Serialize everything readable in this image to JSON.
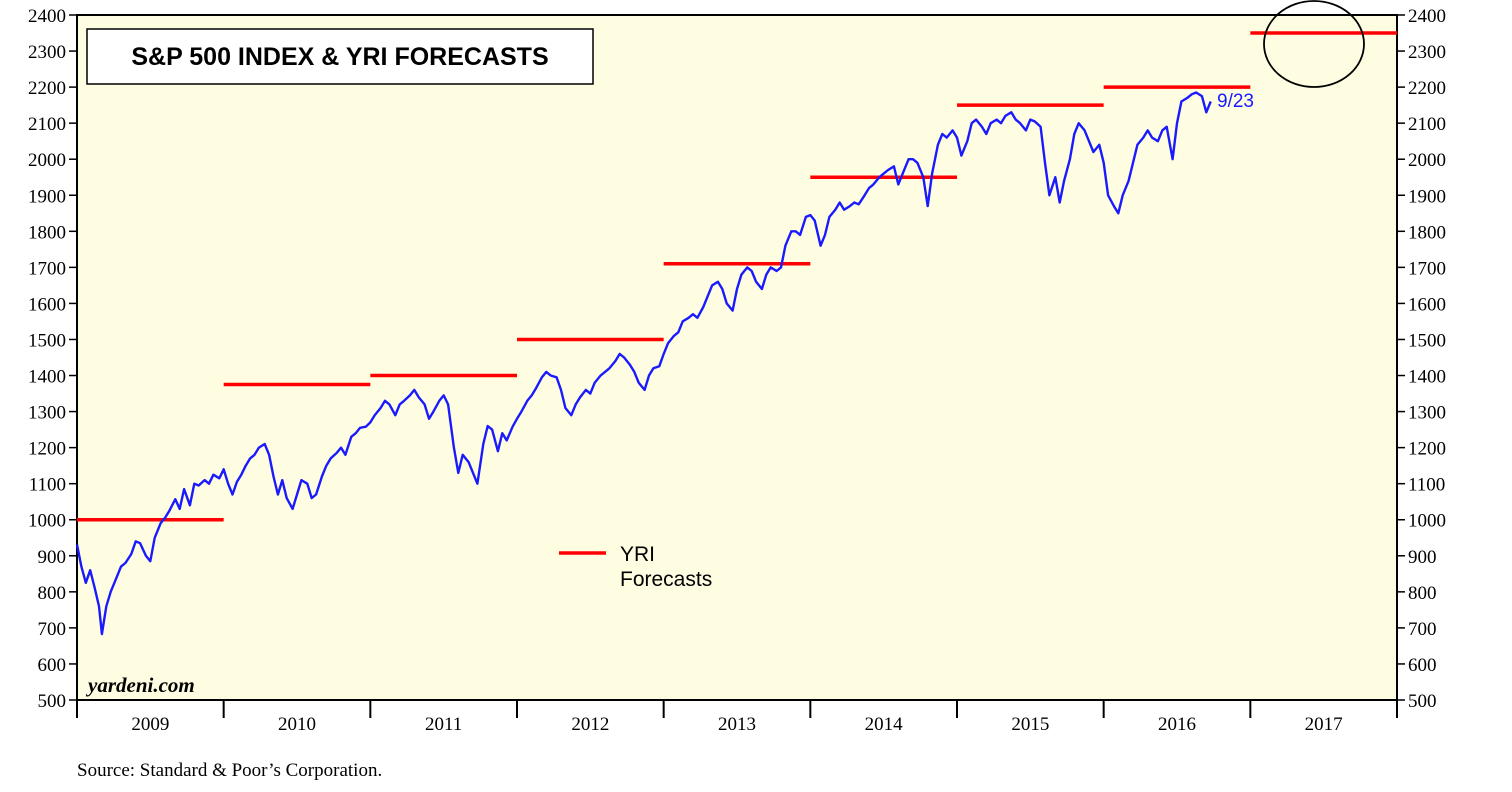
{
  "chart_data": {
    "type": "line",
    "title": "S&P 500 INDEX & YRI FORECASTS",
    "ylim": [
      500,
      2400
    ],
    "yticks": [
      500,
      600,
      700,
      800,
      900,
      1000,
      1100,
      1200,
      1300,
      1400,
      1500,
      1600,
      1700,
      1800,
      1900,
      2000,
      2100,
      2200,
      2300,
      2400
    ],
    "xlim": [
      2009.0,
      2018.0
    ],
    "year_labels": [
      "2009",
      "2010",
      "2011",
      "2012",
      "2013",
      "2014",
      "2015",
      "2016",
      "2017"
    ],
    "series": [
      {
        "name": "S&P 500 Index",
        "color": "#1a1aff",
        "points": [
          [
            2009.0,
            931
          ],
          [
            2009.03,
            870
          ],
          [
            2009.06,
            825
          ],
          [
            2009.09,
            860
          ],
          [
            2009.12,
            812
          ],
          [
            2009.15,
            760
          ],
          [
            2009.17,
            683
          ],
          [
            2009.2,
            760
          ],
          [
            2009.23,
            800
          ],
          [
            2009.27,
            840
          ],
          [
            2009.3,
            870
          ],
          [
            2009.33,
            880
          ],
          [
            2009.37,
            905
          ],
          [
            2009.4,
            940
          ],
          [
            2009.43,
            935
          ],
          [
            2009.47,
            900
          ],
          [
            2009.5,
            885
          ],
          [
            2009.53,
            950
          ],
          [
            2009.57,
            990
          ],
          [
            2009.6,
            1005
          ],
          [
            2009.63,
            1025
          ],
          [
            2009.67,
            1057
          ],
          [
            2009.7,
            1030
          ],
          [
            2009.73,
            1085
          ],
          [
            2009.77,
            1040
          ],
          [
            2009.8,
            1100
          ],
          [
            2009.83,
            1095
          ],
          [
            2009.87,
            1110
          ],
          [
            2009.9,
            1100
          ],
          [
            2009.93,
            1125
          ],
          [
            2009.97,
            1115
          ],
          [
            2010.0,
            1140
          ],
          [
            2010.03,
            1100
          ],
          [
            2010.06,
            1070
          ],
          [
            2010.09,
            1105
          ],
          [
            2010.12,
            1125
          ],
          [
            2010.15,
            1150
          ],
          [
            2010.18,
            1170
          ],
          [
            2010.21,
            1180
          ],
          [
            2010.24,
            1200
          ],
          [
            2010.28,
            1210
          ],
          [
            2010.31,
            1180
          ],
          [
            2010.34,
            1120
          ],
          [
            2010.37,
            1070
          ],
          [
            2010.4,
            1110
          ],
          [
            2010.43,
            1060
          ],
          [
            2010.47,
            1030
          ],
          [
            2010.5,
            1070
          ],
          [
            2010.53,
            1110
          ],
          [
            2010.57,
            1100
          ],
          [
            2010.6,
            1060
          ],
          [
            2010.63,
            1070
          ],
          [
            2010.67,
            1120
          ],
          [
            2010.7,
            1150
          ],
          [
            2010.73,
            1170
          ],
          [
            2010.77,
            1185
          ],
          [
            2010.8,
            1200
          ],
          [
            2010.83,
            1180
          ],
          [
            2010.87,
            1230
          ],
          [
            2010.9,
            1240
          ],
          [
            2010.93,
            1255
          ],
          [
            2010.97,
            1258
          ],
          [
            2011.0,
            1270
          ],
          [
            2011.03,
            1290
          ],
          [
            2011.07,
            1310
          ],
          [
            2011.1,
            1330
          ],
          [
            2011.13,
            1320
          ],
          [
            2011.17,
            1290
          ],
          [
            2011.2,
            1320
          ],
          [
            2011.23,
            1330
          ],
          [
            2011.27,
            1345
          ],
          [
            2011.3,
            1360
          ],
          [
            2011.33,
            1340
          ],
          [
            2011.37,
            1320
          ],
          [
            2011.4,
            1280
          ],
          [
            2011.43,
            1300
          ],
          [
            2011.47,
            1330
          ],
          [
            2011.5,
            1345
          ],
          [
            2011.53,
            1320
          ],
          [
            2011.57,
            1200
          ],
          [
            2011.6,
            1130
          ],
          [
            2011.63,
            1180
          ],
          [
            2011.67,
            1160
          ],
          [
            2011.7,
            1130
          ],
          [
            2011.73,
            1100
          ],
          [
            2011.77,
            1210
          ],
          [
            2011.8,
            1260
          ],
          [
            2011.83,
            1250
          ],
          [
            2011.87,
            1190
          ],
          [
            2011.9,
            1240
          ],
          [
            2011.93,
            1220
          ],
          [
            2011.97,
            1258
          ],
          [
            2012.0,
            1280
          ],
          [
            2012.03,
            1300
          ],
          [
            2012.07,
            1330
          ],
          [
            2012.1,
            1345
          ],
          [
            2012.13,
            1365
          ],
          [
            2012.17,
            1395
          ],
          [
            2012.2,
            1410
          ],
          [
            2012.23,
            1400
          ],
          [
            2012.27,
            1395
          ],
          [
            2012.3,
            1360
          ],
          [
            2012.33,
            1310
          ],
          [
            2012.37,
            1290
          ],
          [
            2012.4,
            1320
          ],
          [
            2012.43,
            1340
          ],
          [
            2012.47,
            1360
          ],
          [
            2012.5,
            1350
          ],
          [
            2012.53,
            1380
          ],
          [
            2012.57,
            1400
          ],
          [
            2012.6,
            1410
          ],
          [
            2012.63,
            1420
          ],
          [
            2012.67,
            1440
          ],
          [
            2012.7,
            1460
          ],
          [
            2012.73,
            1450
          ],
          [
            2012.77,
            1430
          ],
          [
            2012.8,
            1410
          ],
          [
            2012.83,
            1380
          ],
          [
            2012.87,
            1360
          ],
          [
            2012.9,
            1400
          ],
          [
            2012.93,
            1420
          ],
          [
            2012.97,
            1426
          ],
          [
            2013.0,
            1460
          ],
          [
            2013.03,
            1490
          ],
          [
            2013.07,
            1510
          ],
          [
            2013.1,
            1520
          ],
          [
            2013.13,
            1550
          ],
          [
            2013.17,
            1560
          ],
          [
            2013.2,
            1570
          ],
          [
            2013.23,
            1560
          ],
          [
            2013.27,
            1590
          ],
          [
            2013.3,
            1620
          ],
          [
            2013.33,
            1650
          ],
          [
            2013.37,
            1660
          ],
          [
            2013.4,
            1640
          ],
          [
            2013.43,
            1600
          ],
          [
            2013.47,
            1580
          ],
          [
            2013.5,
            1640
          ],
          [
            2013.53,
            1680
          ],
          [
            2013.57,
            1700
          ],
          [
            2013.6,
            1690
          ],
          [
            2013.63,
            1660
          ],
          [
            2013.67,
            1640
          ],
          [
            2013.7,
            1680
          ],
          [
            2013.73,
            1700
          ],
          [
            2013.77,
            1690
          ],
          [
            2013.8,
            1700
          ],
          [
            2013.83,
            1760
          ],
          [
            2013.87,
            1800
          ],
          [
            2013.9,
            1800
          ],
          [
            2013.93,
            1790
          ],
          [
            2013.97,
            1840
          ],
          [
            2014.0,
            1845
          ],
          [
            2014.03,
            1830
          ],
          [
            2014.07,
            1760
          ],
          [
            2014.1,
            1790
          ],
          [
            2014.13,
            1840
          ],
          [
            2014.17,
            1860
          ],
          [
            2014.2,
            1880
          ],
          [
            2014.23,
            1860
          ],
          [
            2014.27,
            1870
          ],
          [
            2014.3,
            1880
          ],
          [
            2014.33,
            1875
          ],
          [
            2014.37,
            1900
          ],
          [
            2014.4,
            1920
          ],
          [
            2014.43,
            1930
          ],
          [
            2014.47,
            1950
          ],
          [
            2014.5,
            1960
          ],
          [
            2014.53,
            1970
          ],
          [
            2014.57,
            1980
          ],
          [
            2014.6,
            1930
          ],
          [
            2014.63,
            1960
          ],
          [
            2014.67,
            2000
          ],
          [
            2014.7,
            2000
          ],
          [
            2014.73,
            1990
          ],
          [
            2014.77,
            1950
          ],
          [
            2014.8,
            1870
          ],
          [
            2014.83,
            1960
          ],
          [
            2014.87,
            2040
          ],
          [
            2014.9,
            2070
          ],
          [
            2014.93,
            2060
          ],
          [
            2014.97,
            2080
          ],
          [
            2015.0,
            2060
          ],
          [
            2015.03,
            2010
          ],
          [
            2015.07,
            2050
          ],
          [
            2015.1,
            2100
          ],
          [
            2015.13,
            2110
          ],
          [
            2015.17,
            2090
          ],
          [
            2015.2,
            2070
          ],
          [
            2015.23,
            2100
          ],
          [
            2015.27,
            2110
          ],
          [
            2015.3,
            2100
          ],
          [
            2015.33,
            2120
          ],
          [
            2015.37,
            2130
          ],
          [
            2015.4,
            2110
          ],
          [
            2015.43,
            2100
          ],
          [
            2015.47,
            2080
          ],
          [
            2015.5,
            2110
          ],
          [
            2015.53,
            2105
          ],
          [
            2015.57,
            2090
          ],
          [
            2015.6,
            1990
          ],
          [
            2015.63,
            1900
          ],
          [
            2015.67,
            1950
          ],
          [
            2015.7,
            1880
          ],
          [
            2015.73,
            1940
          ],
          [
            2015.77,
            2000
          ],
          [
            2015.8,
            2070
          ],
          [
            2015.83,
            2100
          ],
          [
            2015.87,
            2080
          ],
          [
            2015.9,
            2050
          ],
          [
            2015.93,
            2020
          ],
          [
            2015.97,
            2040
          ],
          [
            2016.0,
            1990
          ],
          [
            2016.03,
            1900
          ],
          [
            2016.07,
            1870
          ],
          [
            2016.1,
            1850
          ],
          [
            2016.13,
            1900
          ],
          [
            2016.17,
            1940
          ],
          [
            2016.2,
            1990
          ],
          [
            2016.23,
            2040
          ],
          [
            2016.27,
            2060
          ],
          [
            2016.3,
            2080
          ],
          [
            2016.33,
            2060
          ],
          [
            2016.37,
            2050
          ],
          [
            2016.4,
            2080
          ],
          [
            2016.43,
            2090
          ],
          [
            2016.47,
            2000
          ],
          [
            2016.5,
            2100
          ],
          [
            2016.53,
            2160
          ],
          [
            2016.57,
            2170
          ],
          [
            2016.6,
            2180
          ],
          [
            2016.63,
            2185
          ],
          [
            2016.67,
            2175
          ],
          [
            2016.7,
            2130
          ],
          [
            2016.73,
            2160
          ]
        ]
      }
    ],
    "forecasts": {
      "name": "YRI Forecasts",
      "color": "#ff0000",
      "segments": [
        {
          "year": 2009,
          "value": 1000
        },
        {
          "year": 2010,
          "value": 1375
        },
        {
          "year": 2011,
          "value": 1400
        },
        {
          "year": 2012,
          "value": 1500
        },
        {
          "year": 2013,
          "value": 1710
        },
        {
          "year": 2014,
          "value": 1950
        },
        {
          "year": 2015,
          "value": 2150
        },
        {
          "year": 2016,
          "value": 2200
        },
        {
          "year": 2017,
          "value": 2350
        }
      ]
    },
    "legend": {
      "line1": "YRI",
      "line2": "Forecasts",
      "placement": "center"
    },
    "end_label": "9/23",
    "watermark": "yardeni.com",
    "source": "Source: Standard & Poor’s Corporation."
  }
}
